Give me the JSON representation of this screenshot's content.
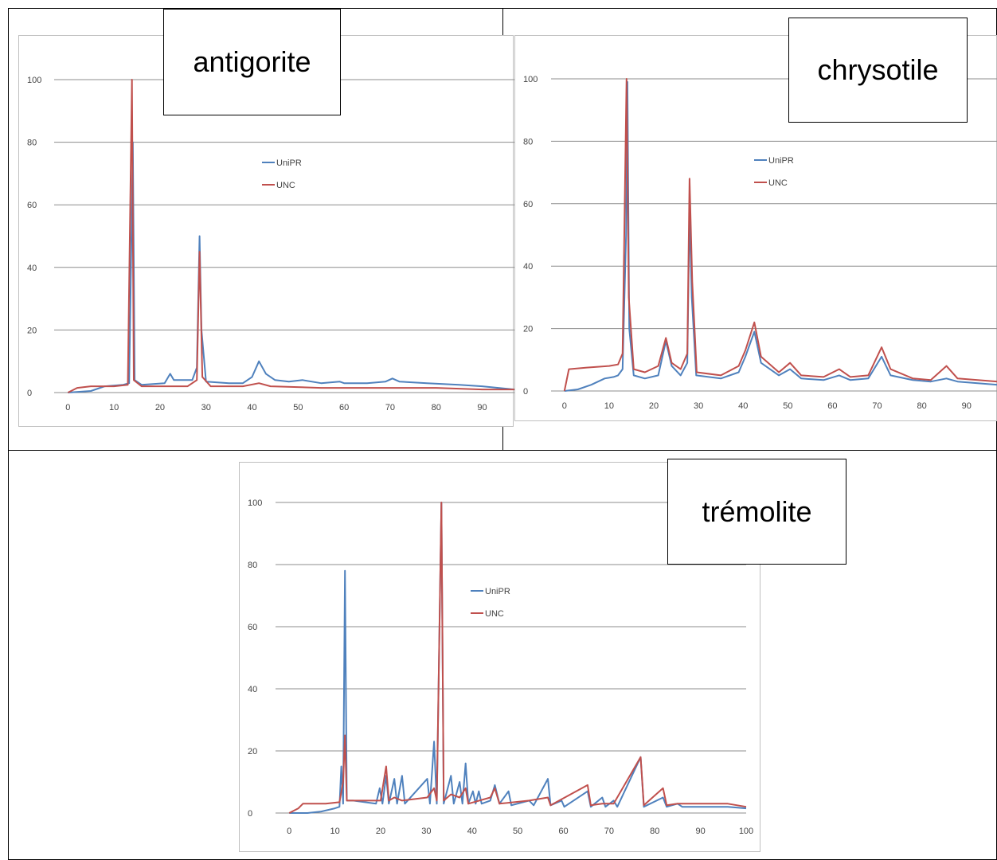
{
  "colors": {
    "uniPR": "#4f81bd",
    "unc": "#c0504d",
    "grid": "#8c8c8c",
    "axis": "#8c8c8c"
  },
  "chart_data": [
    {
      "type": "line",
      "title": "antigorite",
      "xlabel": "",
      "ylabel": "",
      "xlim": [
        -3,
        97
      ],
      "ylim": [
        0,
        100
      ],
      "x_ticks": [
        0,
        10,
        20,
        30,
        40,
        50,
        60,
        70,
        80,
        90
      ],
      "y_ticks": [
        0,
        20,
        40,
        60,
        80,
        100
      ],
      "grid": "horizontal",
      "legend": "center-top",
      "series": [
        {
          "name": "UniPR",
          "points": [
            [
              0,
              0
            ],
            [
              5,
              0.5
            ],
            [
              8,
              2
            ],
            [
              12,
              2.5
            ],
            [
              13.3,
              3
            ],
            [
              13.9,
              60
            ],
            [
              14.1,
              80
            ],
            [
              14.5,
              4
            ],
            [
              16,
              2.5
            ],
            [
              21,
              3
            ],
            [
              22.2,
              6
            ],
            [
              23,
              4
            ],
            [
              25,
              4
            ],
            [
              27,
              4
            ],
            [
              28,
              8
            ],
            [
              28.6,
              50
            ],
            [
              29,
              20
            ],
            [
              30,
              3.5
            ],
            [
              35,
              3
            ],
            [
              38,
              3
            ],
            [
              40,
              5
            ],
            [
              41.5,
              10
            ],
            [
              43,
              6
            ],
            [
              45,
              4
            ],
            [
              48,
              3.5
            ],
            [
              51,
              4
            ],
            [
              55,
              3
            ],
            [
              59,
              3.5
            ],
            [
              60,
              3
            ],
            [
              65,
              3
            ],
            [
              69,
              3.5
            ],
            [
              70.5,
              4.5
            ],
            [
              72,
              3.5
            ],
            [
              78,
              3
            ],
            [
              85,
              2.5
            ],
            [
              90,
              2
            ],
            [
              97,
              1
            ]
          ]
        },
        {
          "name": "UNC",
          "points": [
            [
              0,
              0
            ],
            [
              2,
              1.5
            ],
            [
              5,
              2
            ],
            [
              10,
              2
            ],
            [
              13,
              2.5
            ],
            [
              13.9,
              100
            ],
            [
              14.3,
              4
            ],
            [
              16,
              2
            ],
            [
              22,
              2
            ],
            [
              26,
              2
            ],
            [
              28,
              4
            ],
            [
              28.6,
              45
            ],
            [
              29.2,
              5
            ],
            [
              31,
              2
            ],
            [
              38,
              2
            ],
            [
              41.5,
              3
            ],
            [
              44,
              2
            ],
            [
              55,
              1.5
            ],
            [
              65,
              1.5
            ],
            [
              80,
              1.5
            ],
            [
              90,
              1
            ],
            [
              97,
              1
            ]
          ]
        }
      ]
    },
    {
      "type": "line",
      "title": "chrysotile",
      "xlabel": "",
      "ylabel": "",
      "xlim": [
        -3,
        97
      ],
      "ylim": [
        0,
        100
      ],
      "x_ticks": [
        0,
        10,
        20,
        30,
        40,
        50,
        60,
        70,
        80,
        90
      ],
      "y_ticks": [
        0,
        20,
        40,
        60,
        80,
        100
      ],
      "grid": "horizontal",
      "legend": "center-top",
      "series": [
        {
          "name": "UniPR",
          "points": [
            [
              0,
              0
            ],
            [
              3,
              0.5
            ],
            [
              6,
              2
            ],
            [
              9,
              4
            ],
            [
              11,
              4.5
            ],
            [
              12,
              5
            ],
            [
              13,
              7
            ],
            [
              13.8,
              50
            ],
            [
              14.1,
              99
            ],
            [
              14.5,
              20
            ],
            [
              15.5,
              5
            ],
            [
              18,
              4
            ],
            [
              21,
              5
            ],
            [
              22.7,
              16
            ],
            [
              24,
              8
            ],
            [
              26,
              5
            ],
            [
              27.5,
              9
            ],
            [
              28,
              58
            ],
            [
              28.5,
              30
            ],
            [
              29.5,
              5
            ],
            [
              35,
              4
            ],
            [
              39,
              6
            ],
            [
              40.5,
              11
            ],
            [
              42.5,
              19
            ],
            [
              44,
              9
            ],
            [
              48,
              5
            ],
            [
              50.5,
              7
            ],
            [
              53,
              4
            ],
            [
              58,
              3.5
            ],
            [
              61.5,
              5
            ],
            [
              64,
              3.5
            ],
            [
              68,
              4
            ],
            [
              71,
              11
            ],
            [
              73,
              5
            ],
            [
              78,
              3.5
            ],
            [
              82,
              3
            ],
            [
              85.5,
              4
            ],
            [
              88,
              3
            ],
            [
              97,
              2
            ]
          ]
        },
        {
          "name": "UNC",
          "points": [
            [
              0,
              0
            ],
            [
              1,
              7
            ],
            [
              5,
              7.5
            ],
            [
              10,
              8
            ],
            [
              12,
              8.5
            ],
            [
              13,
              12
            ],
            [
              13.9,
              100
            ],
            [
              14.4,
              30
            ],
            [
              15.5,
              7
            ],
            [
              18,
              6
            ],
            [
              21,
              8
            ],
            [
              22.7,
              17
            ],
            [
              24,
              9
            ],
            [
              26,
              7
            ],
            [
              27.5,
              12
            ],
            [
              28,
              68
            ],
            [
              28.6,
              35
            ],
            [
              29.6,
              6
            ],
            [
              35,
              5
            ],
            [
              39,
              8
            ],
            [
              40.5,
              13
            ],
            [
              42.5,
              22
            ],
            [
              44,
              11
            ],
            [
              48,
              6
            ],
            [
              50.5,
              9
            ],
            [
              53,
              5
            ],
            [
              58,
              4.5
            ],
            [
              61.5,
              7
            ],
            [
              64,
              4.5
            ],
            [
              68,
              5
            ],
            [
              71,
              14
            ],
            [
              73,
              7
            ],
            [
              78,
              4
            ],
            [
              82,
              3.5
            ],
            [
              85.5,
              8
            ],
            [
              88,
              4
            ],
            [
              97,
              3
            ]
          ]
        }
      ]
    },
    {
      "type": "line",
      "title": "trémolite",
      "xlabel": "",
      "ylabel": "",
      "xlim": [
        -3,
        100
      ],
      "ylim": [
        0,
        100
      ],
      "x_ticks": [
        0,
        10,
        20,
        30,
        40,
        50,
        60,
        70,
        80,
        90,
        100
      ],
      "y_ticks": [
        0,
        20,
        40,
        60,
        80,
        100
      ],
      "grid": "horizontal",
      "legend": "center-top",
      "series": [
        {
          "name": "UniPR",
          "points": [
            [
              0,
              0
            ],
            [
              4,
              0
            ],
            [
              7,
              0.5
            ],
            [
              10,
              1.5
            ],
            [
              11,
              2
            ],
            [
              11.4,
              15
            ],
            [
              11.8,
              3
            ],
            [
              12.2,
              78
            ],
            [
              12.6,
              4
            ],
            [
              14,
              4
            ],
            [
              19,
              3
            ],
            [
              19.8,
              8
            ],
            [
              20.4,
              3
            ],
            [
              21.2,
              12
            ],
            [
              21.8,
              3
            ],
            [
              23,
              11
            ],
            [
              23.6,
              3
            ],
            [
              24.7,
              12
            ],
            [
              25.3,
              3
            ],
            [
              30.2,
              11
            ],
            [
              30.8,
              3
            ],
            [
              31.7,
              23
            ],
            [
              32.3,
              3
            ],
            [
              33.3,
              100
            ],
            [
              33.8,
              3
            ],
            [
              35.4,
              12
            ],
            [
              36,
              3
            ],
            [
              37.3,
              10
            ],
            [
              37.9,
              3
            ],
            [
              38.6,
              16
            ],
            [
              39.2,
              3
            ],
            [
              40.2,
              7
            ],
            [
              40.8,
              3
            ],
            [
              41.5,
              7
            ],
            [
              42.1,
              3
            ],
            [
              44,
              4
            ],
            [
              45,
              9
            ],
            [
              46,
              3
            ],
            [
              48,
              7
            ],
            [
              48.6,
              2.5
            ],
            [
              52.5,
              4
            ],
            [
              53.5,
              2.5
            ],
            [
              56.6,
              11
            ],
            [
              57.2,
              2.5
            ],
            [
              59.6,
              4
            ],
            [
              60.2,
              2
            ],
            [
              65.3,
              7
            ],
            [
              66,
              2
            ],
            [
              68.5,
              5
            ],
            [
              69.2,
              2
            ],
            [
              71,
              4
            ],
            [
              71.8,
              2
            ],
            [
              76.9,
              18
            ],
            [
              77.6,
              2
            ],
            [
              81.8,
              5
            ],
            [
              82.6,
              2
            ],
            [
              85,
              3
            ],
            [
              86,
              2
            ],
            [
              96,
              2
            ],
            [
              100,
              1.5
            ]
          ]
        },
        {
          "name": "UNC",
          "points": [
            [
              0,
              0
            ],
            [
              2,
              1.5
            ],
            [
              3,
              3
            ],
            [
              8,
              3
            ],
            [
              11,
              3.5
            ],
            [
              11.8,
              10
            ],
            [
              12.2,
              25
            ],
            [
              12.6,
              4
            ],
            [
              14,
              4
            ],
            [
              20,
              4
            ],
            [
              21.2,
              15
            ],
            [
              21.8,
              4
            ],
            [
              23,
              5
            ],
            [
              24.7,
              4
            ],
            [
              30.2,
              5
            ],
            [
              31.7,
              8
            ],
            [
              32.3,
              4
            ],
            [
              33.3,
              100
            ],
            [
              33.8,
              4
            ],
            [
              35.4,
              6
            ],
            [
              37.3,
              5
            ],
            [
              38.6,
              8
            ],
            [
              39.2,
              3
            ],
            [
              44,
              5
            ],
            [
              45,
              8
            ],
            [
              46,
              3
            ],
            [
              52.5,
              4
            ],
            [
              56.6,
              5
            ],
            [
              57.2,
              2.5
            ],
            [
              65.3,
              9
            ],
            [
              66,
              2.5
            ],
            [
              68.5,
              3
            ],
            [
              71,
              3
            ],
            [
              76.9,
              18
            ],
            [
              77.6,
              2.5
            ],
            [
              81.8,
              8
            ],
            [
              82.6,
              2.5
            ],
            [
              85,
              3
            ],
            [
              96,
              3
            ],
            [
              100,
              2
            ]
          ]
        }
      ]
    }
  ]
}
